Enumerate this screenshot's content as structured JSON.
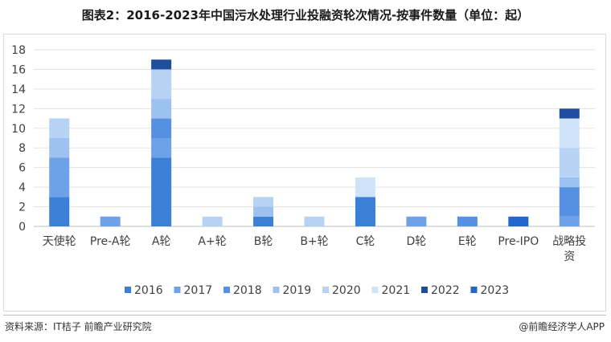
{
  "title": "图表2：2016-2023年中国污水处理行业投融资轮次情况-按事件数量（单位：起）",
  "footer": {
    "source": "资料来源：IT桔子 前瞻产业研究院",
    "brand": "@前瞻经济学人APP"
  },
  "colors": {
    "2016": "#3c7fd8",
    "2017": "#6ea2e8",
    "2018": "#5590e2",
    "2019": "#9dc1f0",
    "2020": "#b7d3f4",
    "2021": "#cfe3f9",
    "2022": "#1f4e9e",
    "2023": "#2367cc"
  },
  "chart_data": {
    "type": "bar",
    "stacked": true,
    "categories": [
      "天使轮",
      "Pre-A轮",
      "A轮",
      "A+轮",
      "B轮",
      "B+轮",
      "C轮",
      "D轮",
      "E轮",
      "Pre-IPO",
      "战略投资"
    ],
    "category_lines": [
      [
        "天使轮"
      ],
      [
        "Pre-A轮"
      ],
      [
        "A轮"
      ],
      [
        "A+轮"
      ],
      [
        "B轮"
      ],
      [
        "B+轮"
      ],
      [
        "C轮"
      ],
      [
        "D轮"
      ],
      [
        "E轮"
      ],
      [
        "Pre-IPO"
      ],
      [
        "战略投",
        "资"
      ]
    ],
    "series": [
      {
        "name": "2016",
        "values": [
          3,
          0,
          7,
          0,
          1,
          0,
          3,
          0,
          0,
          0,
          0
        ]
      },
      {
        "name": "2017",
        "values": [
          4,
          1,
          2,
          0,
          0,
          0,
          0,
          1,
          0,
          0,
          1
        ]
      },
      {
        "name": "2018",
        "values": [
          0,
          0,
          2,
          0,
          0,
          0,
          0,
          0,
          1,
          0,
          3
        ]
      },
      {
        "name": "2019",
        "values": [
          2,
          0,
          2,
          0,
          1,
          0,
          0,
          0,
          0,
          0,
          1
        ]
      },
      {
        "name": "2020",
        "values": [
          2,
          0,
          3,
          1,
          1,
          1,
          0,
          0,
          0,
          0,
          3
        ]
      },
      {
        "name": "2021",
        "values": [
          0,
          0,
          0,
          0,
          0,
          0,
          2,
          0,
          0,
          0,
          3
        ]
      },
      {
        "name": "2022",
        "values": [
          0,
          0,
          1,
          0,
          0,
          0,
          0,
          0,
          0,
          0,
          1
        ]
      },
      {
        "name": "2023",
        "values": [
          0,
          0,
          0,
          0,
          0,
          0,
          0,
          0,
          0,
          1,
          0
        ]
      }
    ],
    "ylim": [
      0,
      18
    ],
    "yticks": [
      0,
      2,
      4,
      6,
      8,
      10,
      12,
      14,
      16,
      18
    ],
    "grid": true,
    "legend": "bottom"
  }
}
